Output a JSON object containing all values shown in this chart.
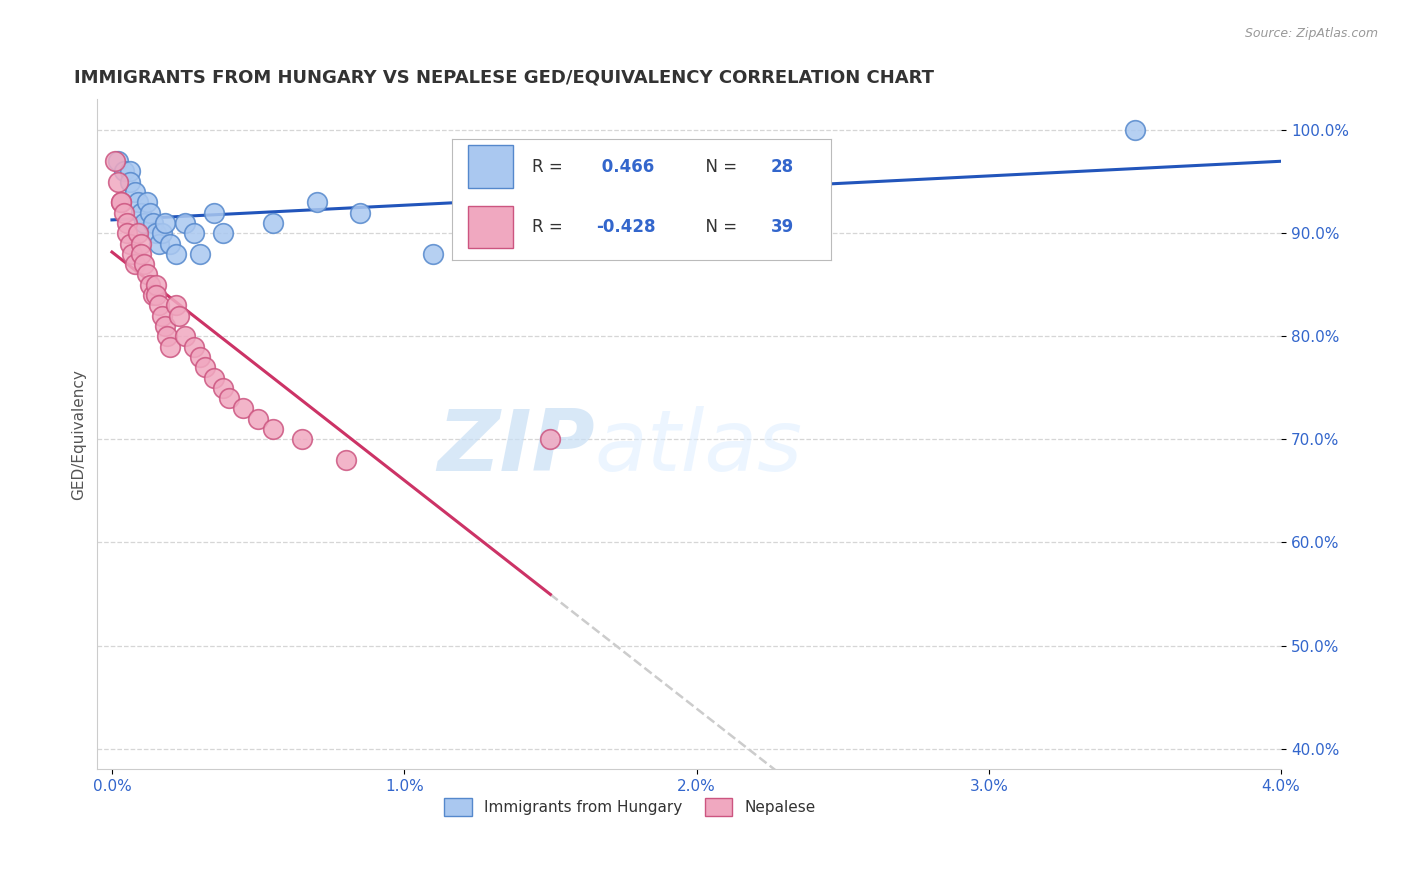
{
  "title": "IMMIGRANTS FROM HUNGARY VS NEPALESE GED/EQUIVALENCY CORRELATION CHART",
  "source": "Source: ZipAtlas.com",
  "ylabel": "GED/Equivalency",
  "xlim": [
    -0.05,
    4.0
  ],
  "ylim": [
    38.0,
    103.0
  ],
  "xticks": [
    0.0,
    1.0,
    2.0,
    3.0,
    4.0
  ],
  "xtick_labels": [
    "0.0%",
    "1.0%",
    "2.0%",
    "3.0%",
    "4.0%"
  ],
  "yticks": [
    40.0,
    50.0,
    60.0,
    70.0,
    80.0,
    90.0,
    100.0
  ],
  "ytick_labels": [
    "40.0%",
    "50.0%",
    "60.0%",
    "70.0%",
    "80.0%",
    "90.0%",
    "100.0%"
  ],
  "hungary_color": "#aac8f0",
  "nepal_color": "#f0a8c0",
  "hungary_edge_color": "#5588cc",
  "nepal_edge_color": "#cc5580",
  "trend_hungary_color": "#2255bb",
  "trend_nepal_color": "#cc3366",
  "trend_extend_color": "#cccccc",
  "R_hungary": 0.466,
  "N_hungary": 28,
  "R_nepal": -0.428,
  "N_nepal": 39,
  "watermark_zip": "ZIP",
  "watermark_atlas": "atlas",
  "legend_label_hungary": "Immigrants from Hungary",
  "legend_label_nepal": "Nepalese",
  "hungary_x": [
    0.02,
    0.04,
    0.06,
    0.06,
    0.08,
    0.09,
    0.1,
    0.11,
    0.12,
    0.13,
    0.14,
    0.15,
    0.16,
    0.17,
    0.18,
    0.2,
    0.22,
    0.25,
    0.28,
    0.3,
    0.35,
    0.38,
    0.55,
    0.7,
    0.85,
    1.1,
    1.55,
    3.5
  ],
  "hungary_y": [
    97,
    96,
    96,
    95,
    94,
    93,
    92,
    91,
    93,
    92,
    91,
    90,
    89,
    90,
    91,
    89,
    88,
    91,
    90,
    88,
    92,
    90,
    91,
    93,
    92,
    88,
    91,
    100
  ],
  "nepal_x": [
    0.01,
    0.02,
    0.03,
    0.03,
    0.04,
    0.05,
    0.05,
    0.06,
    0.07,
    0.08,
    0.09,
    0.1,
    0.1,
    0.11,
    0.12,
    0.13,
    0.14,
    0.15,
    0.15,
    0.16,
    0.17,
    0.18,
    0.19,
    0.2,
    0.22,
    0.23,
    0.25,
    0.28,
    0.3,
    0.32,
    0.35,
    0.38,
    0.4,
    0.45,
    0.5,
    0.55,
    0.65,
    0.8,
    1.5
  ],
  "nepal_y": [
    97,
    95,
    93,
    93,
    92,
    91,
    90,
    89,
    88,
    87,
    90,
    89,
    88,
    87,
    86,
    85,
    84,
    85,
    84,
    83,
    82,
    81,
    80,
    79,
    83,
    82,
    80,
    79,
    78,
    77,
    76,
    75,
    74,
    73,
    72,
    71,
    70,
    68,
    70
  ]
}
